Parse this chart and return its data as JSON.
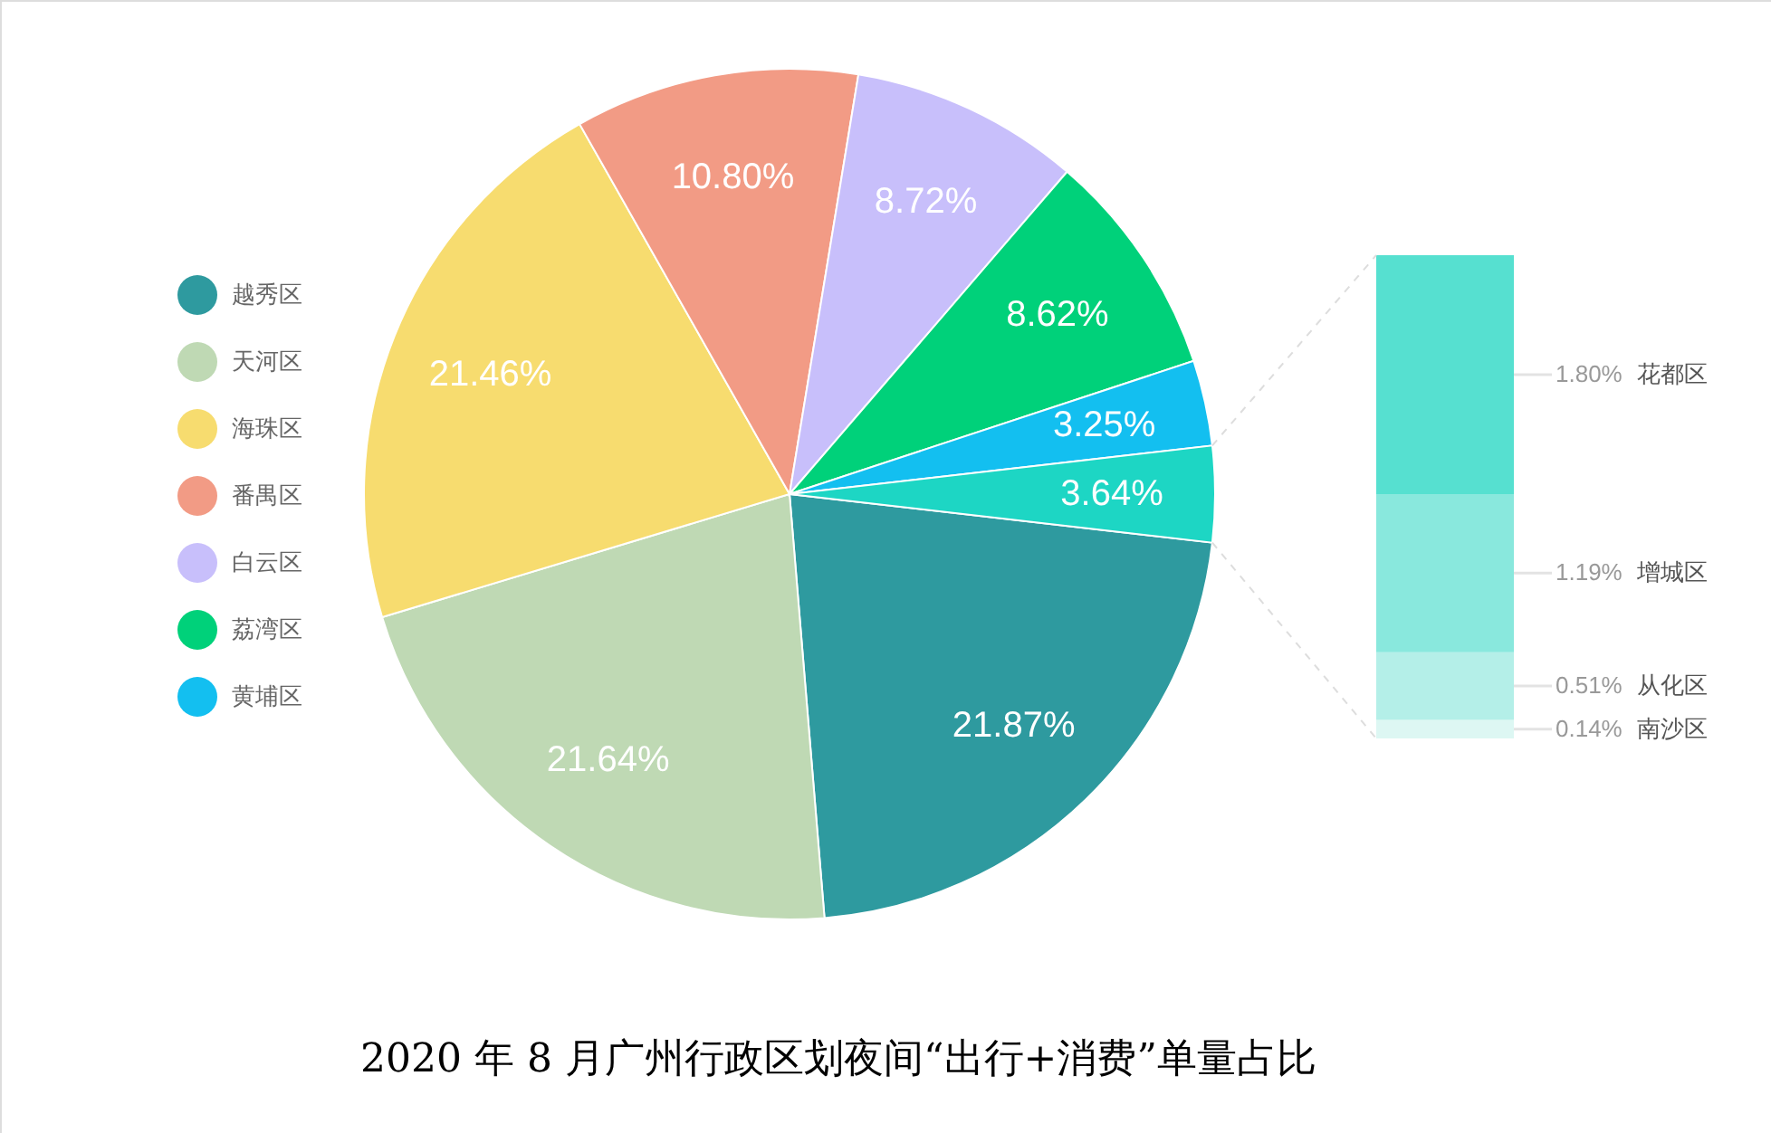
{
  "chart_data": [
    {
      "type": "pie",
      "title": "2020 年 8 月广州行政区划夜间“出行+消费”单量占比",
      "categories": [
        "越秀区",
        "天河区",
        "海珠区",
        "番禺区",
        "白云区",
        "荔湾区",
        "黄埔区",
        null
      ],
      "values": [
        21.87,
        21.64,
        21.46,
        10.8,
        8.72,
        8.62,
        3.25,
        3.64
      ],
      "value_labels": [
        "21.87%",
        "21.64%",
        "21.46%",
        "10.80%",
        "8.72%",
        "8.62%",
        "3.25%",
        "3.64%"
      ],
      "colors": [
        "#2e9a9f",
        "#bfd9b4",
        "#f7dc6f",
        "#f29b85",
        "#c8bffb",
        "#00d17a",
        "#13bff0",
        "#1dd6c4"
      ],
      "legend": "left"
    },
    {
      "type": "bar",
      "stacked": true,
      "tick_labels": false,
      "categories": [
        null
      ],
      "series": [
        {
          "name": "南沙区",
          "color": "#ddf7f3",
          "values": [
            0.14
          ],
          "value_labels": [
            "0.14%"
          ]
        },
        {
          "name": "从化区",
          "color": "#b4efe8",
          "values": [
            0.51
          ],
          "value_labels": [
            "0.51%"
          ]
        },
        {
          "name": "增城区",
          "color": "#89e8dd",
          "values": [
            1.19
          ],
          "value_labels": [
            "1.19%"
          ]
        },
        {
          "name": "花都区",
          "color": "#56e0d0",
          "values": [
            1.8
          ],
          "value_labels": [
            "1.80%"
          ]
        }
      ]
    }
  ]
}
